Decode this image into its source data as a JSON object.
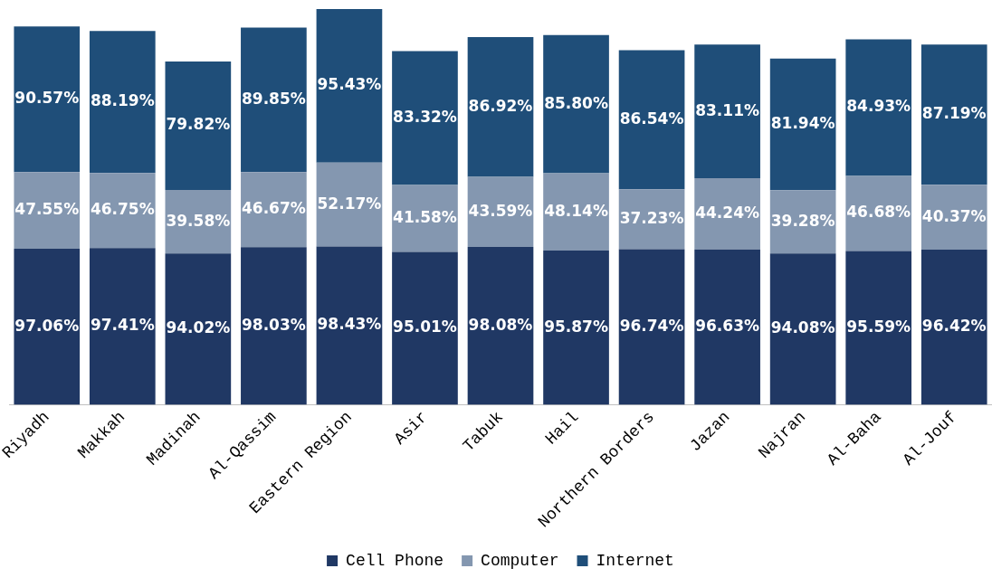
{
  "chart_data": {
    "type": "bar",
    "stacked": true,
    "legend": "bottom",
    "tick_labels": "x",
    "grid": false,
    "categories": [
      "Riyadh",
      "Makkah",
      "Madinah",
      "Al-Qassim",
      "Eastern Region",
      "Asir",
      "Tabuk",
      "Hail",
      "Northern Borders",
      "Jazan",
      "Najran",
      "Al-Baha",
      "Al-Jouf"
    ],
    "series": [
      {
        "name": "Cell Phone",
        "color": "#203864",
        "values": [
          97.06,
          97.41,
          94.02,
          98.03,
          98.43,
          95.01,
          98.08,
          95.87,
          96.74,
          96.63,
          94.08,
          95.59,
          96.42
        ],
        "value_labels": [
          "97.06%",
          "97.41%",
          "94.02%",
          "98.03%",
          "98.43%",
          "95.01%",
          "98.08%",
          "95.87%",
          "96.74%",
          "96.63%",
          "94.08%",
          "95.59%",
          "96.42%"
        ]
      },
      {
        "name": "Computer",
        "color": "#8497b0",
        "values": [
          47.55,
          46.75,
          39.58,
          46.67,
          52.17,
          41.58,
          43.59,
          48.14,
          37.23,
          44.24,
          39.28,
          46.68,
          40.37
        ],
        "value_labels": [
          "47.55%",
          "46.75%",
          "39.58%",
          "46.67%",
          "52.17%",
          "41.58%",
          "43.59%",
          "48.14%",
          "37.23%",
          "44.24%",
          "39.28%",
          "46.68%",
          "40.37%"
        ]
      },
      {
        "name": "Internet",
        "color": "#1f4e79",
        "values": [
          90.57,
          88.19,
          79.82,
          89.85,
          95.43,
          83.32,
          86.92,
          85.8,
          86.54,
          83.11,
          81.94,
          84.93,
          87.19
        ],
        "value_labels": [
          "90.57%",
          "88.19%",
          "79.82%",
          "89.85%",
          "95.43%",
          "83.32%",
          "86.92%",
          "85.80%",
          "86.54%",
          "83.11%",
          "81.94%",
          "84.93%",
          "87.19%"
        ]
      }
    ]
  }
}
